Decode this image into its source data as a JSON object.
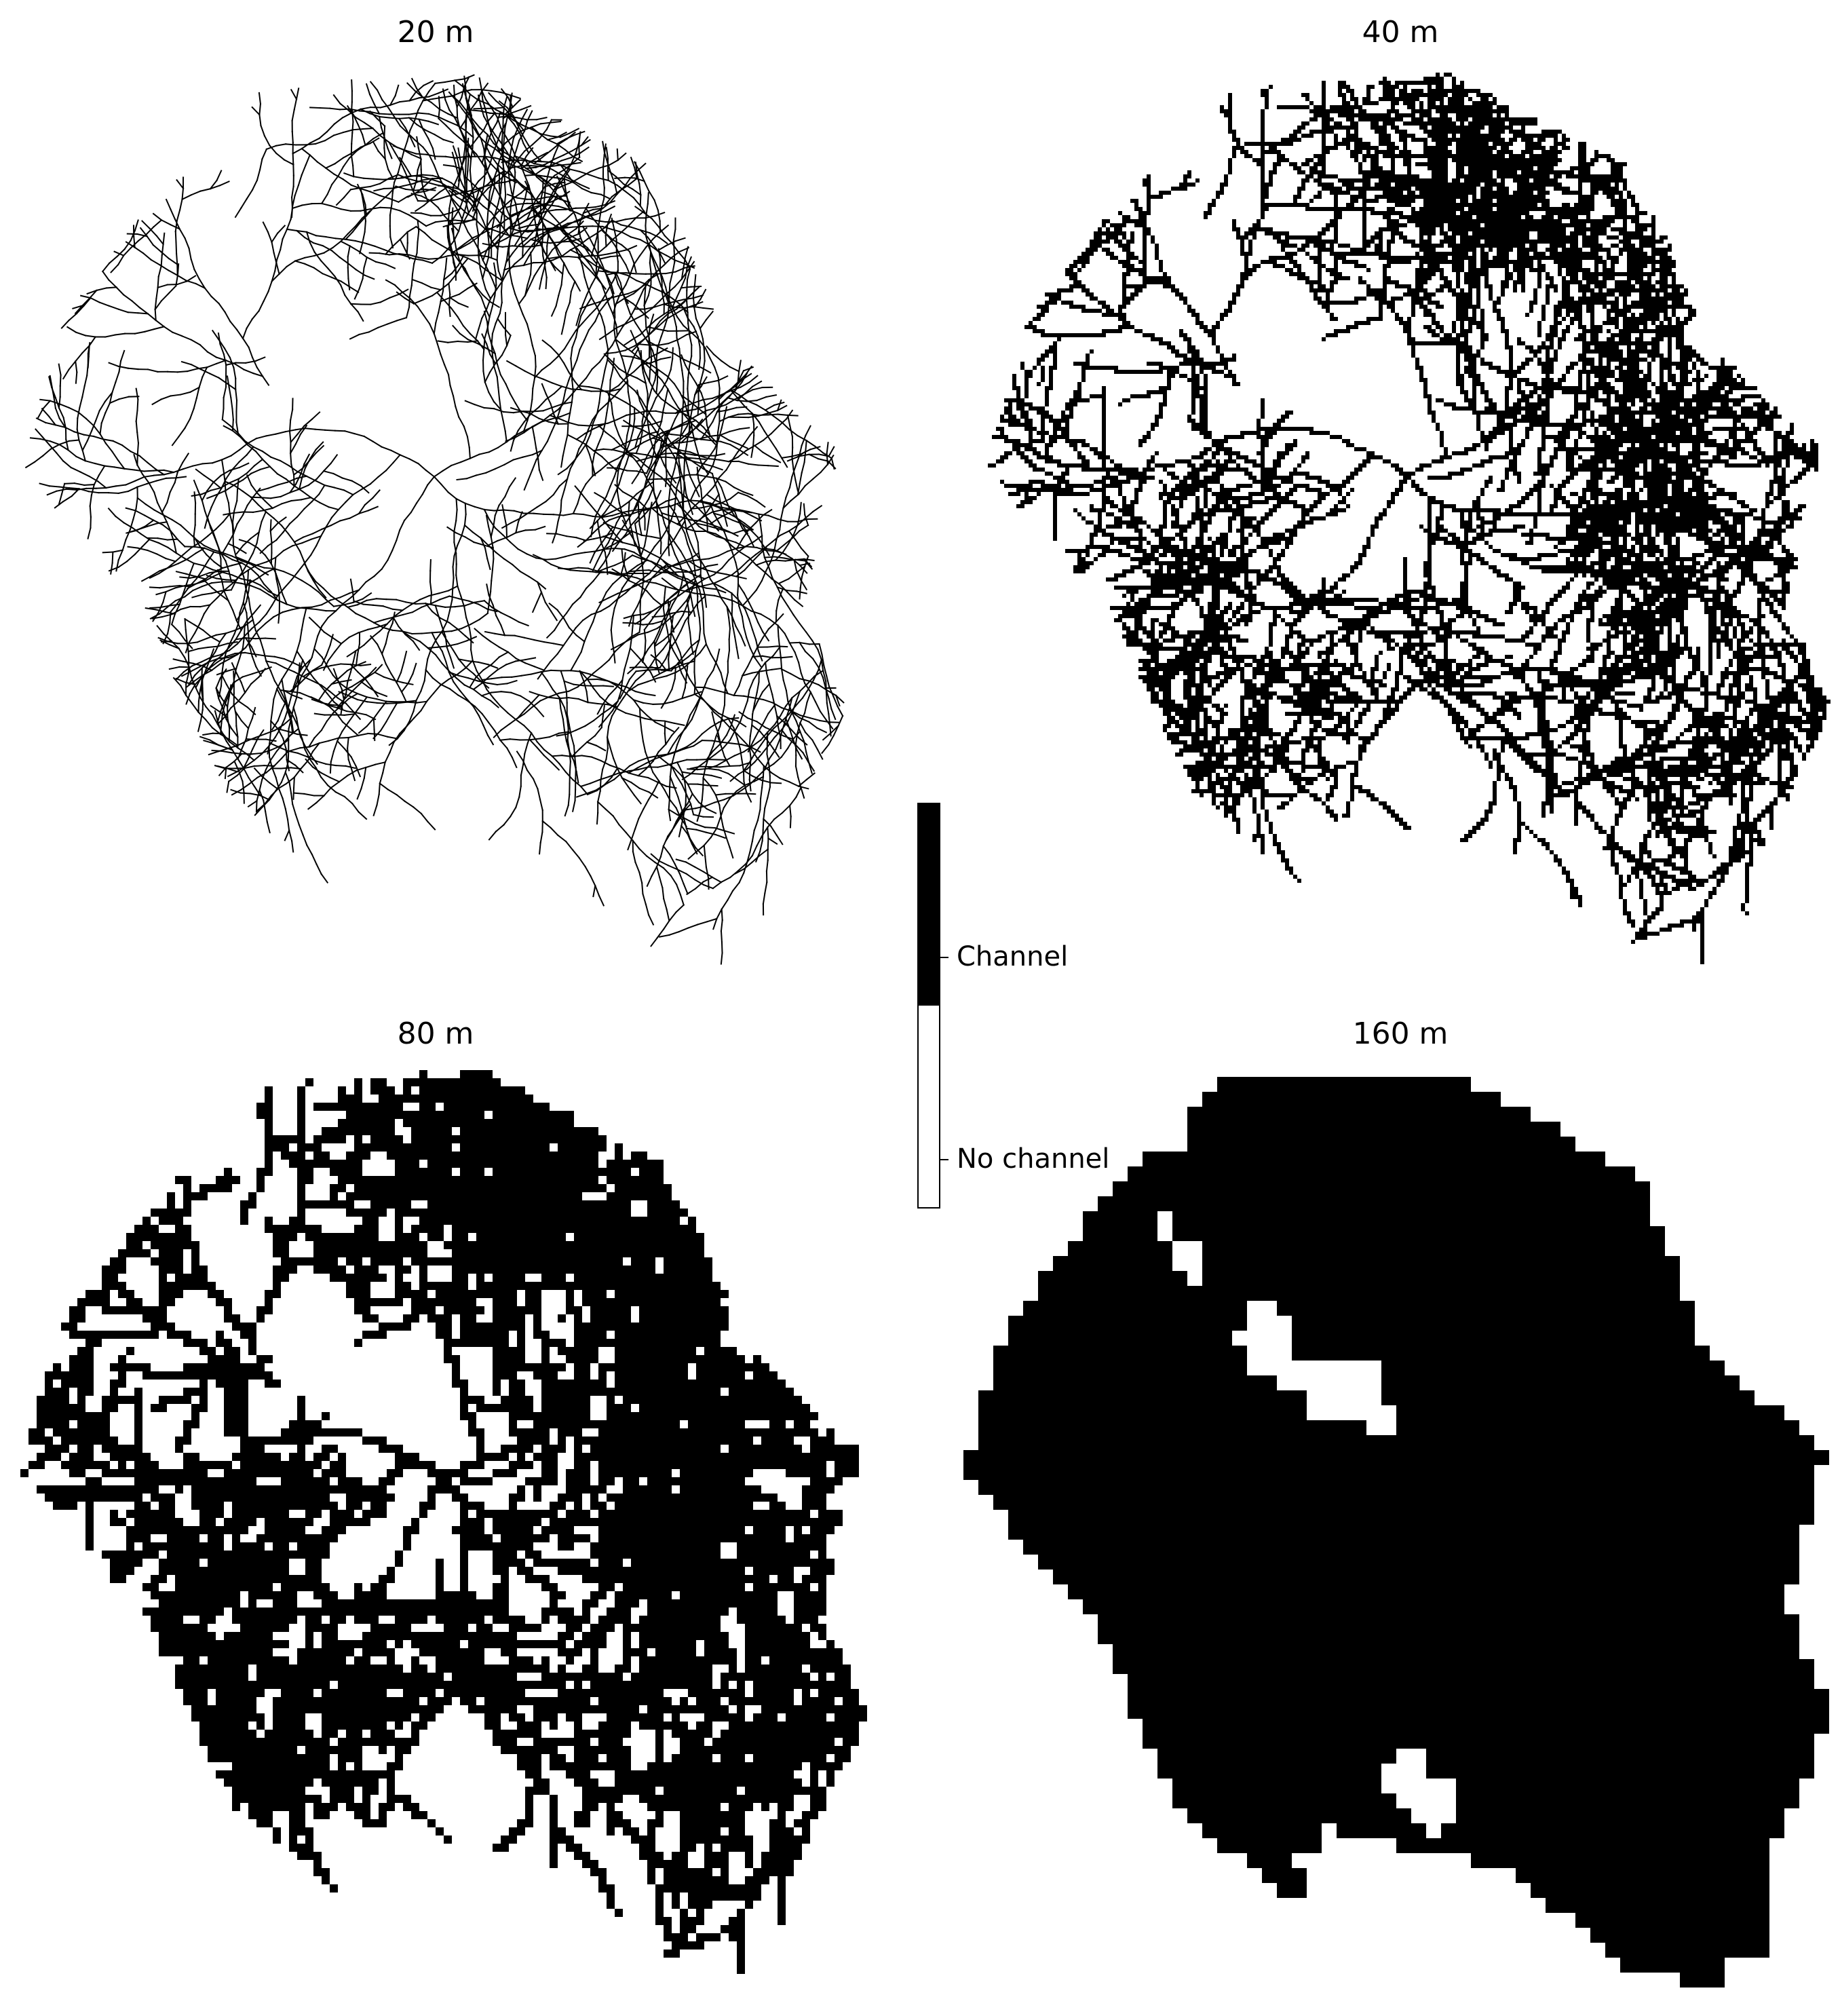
{
  "panels": [
    {
      "id": "20",
      "title": "20 m",
      "resolution_m": 20
    },
    {
      "id": "40",
      "title": "40 m",
      "resolution_m": 40
    },
    {
      "id": "80",
      "title": "80 m",
      "resolution_m": 80
    },
    {
      "id": "160",
      "title": "160 m",
      "resolution_m": 160
    }
  ],
  "colorbar": {
    "labels": {
      "channel": "Channel",
      "no_channel": "No channel"
    },
    "colors": {
      "channel": "#000000",
      "no_channel": "#ffffff"
    }
  }
}
